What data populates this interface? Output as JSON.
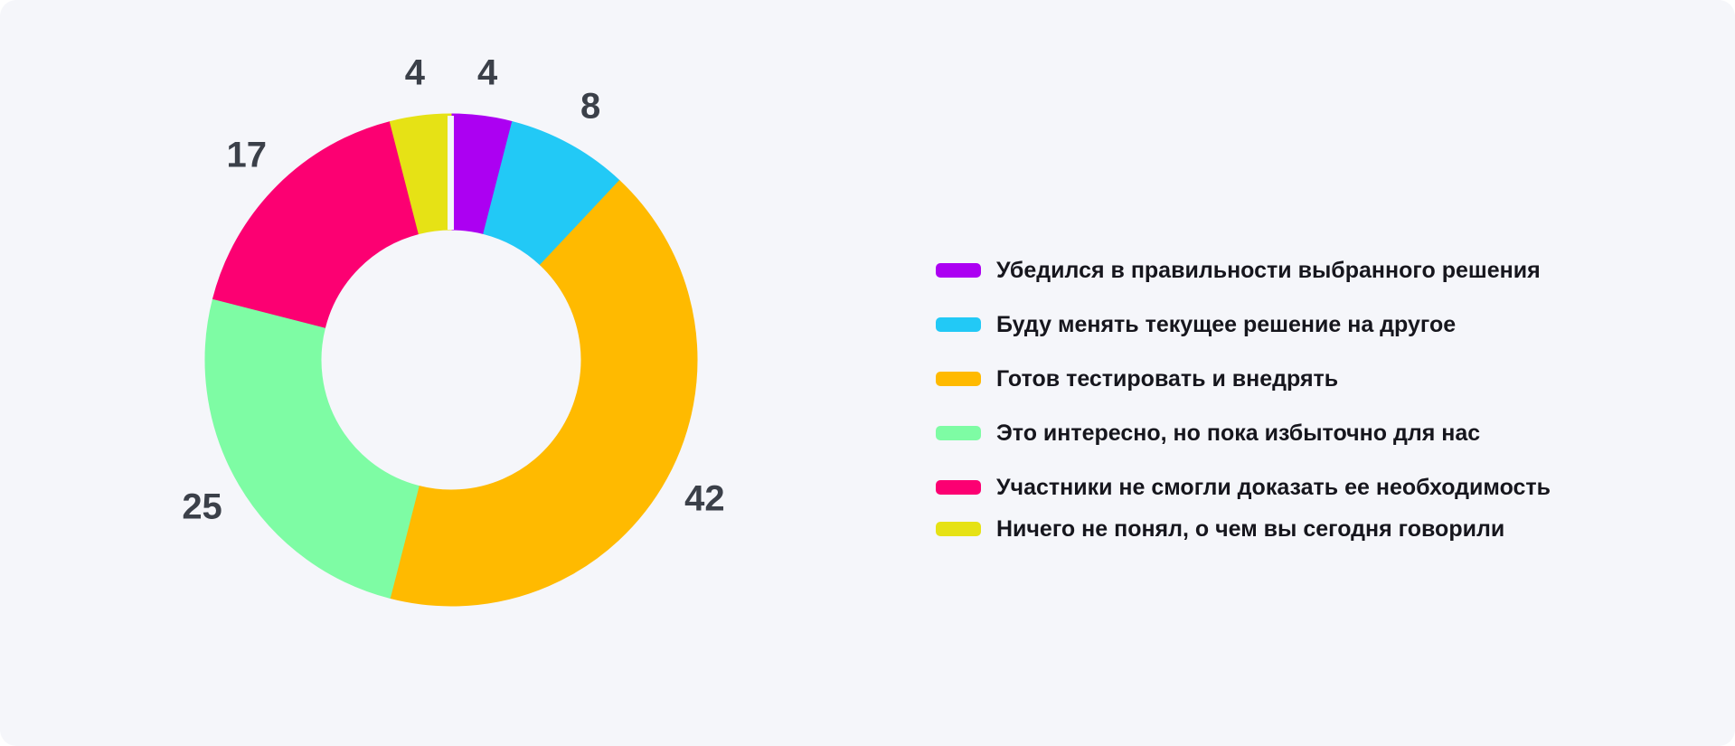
{
  "page": {
    "background_color": "#F5F6FA",
    "value_label_color": "#3B4049",
    "legend_text_color": "#16161D"
  },
  "chart_data": {
    "type": "pie",
    "subtype": "donut",
    "title": "",
    "start_angle_deg": 0,
    "direction": "clockwise",
    "donut_hole_ratio": 0.53,
    "legend_position": "right",
    "data_labels_visible": true,
    "categories": [
      "Убедился в правильности выбранного решения",
      "Буду менять текущее решение на другое",
      "Готов тестировать и внедрять",
      "Это интересно, но пока избыточно для нас",
      "Участники не смогли доказать ее необходимость",
      "Ничего не понял, о чем вы сегодня говорили"
    ],
    "values": [
      4,
      8,
      42,
      25,
      17,
      4
    ],
    "series": [
      {
        "label": "Убедился в правильности выбранного решения",
        "value": 4,
        "color": "#AC00F2"
      },
      {
        "label": "Буду менять текущее решение на другое",
        "value": 8,
        "color": "#22C9F6"
      },
      {
        "label": "Готов тестировать и внедрять",
        "value": 42,
        "color": "#FFBA00"
      },
      {
        "label": "Это интересно, но пока избыточно для нас",
        "value": 25,
        "color": "#7EFCA4"
      },
      {
        "label": "Участники не смогли доказать ее необходимость",
        "value": 17,
        "color": "#FC0072"
      },
      {
        "label": "Ничего не понял, о чем вы сегодня говорили",
        "value": 4,
        "color": "#E6E215"
      }
    ]
  }
}
